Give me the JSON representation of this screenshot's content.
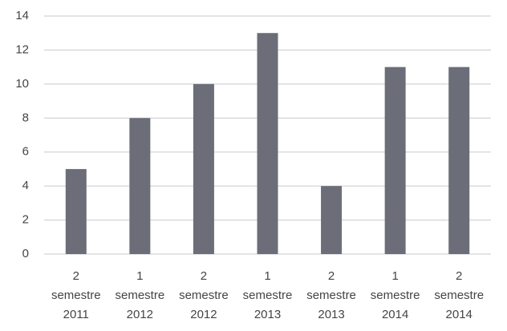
{
  "chart_data": {
    "type": "bar",
    "categories": [
      "2 semestre 2011",
      "1 semestre 2012",
      "2 semestre 2012",
      "1 semestre 2013",
      "2 semestre 2013",
      "1 semestre 2014",
      "2 semestre 2014"
    ],
    "values": [
      5,
      8,
      10,
      13,
      4,
      11,
      11
    ],
    "color": "#6b6e78",
    "ylim": [
      0,
      14
    ],
    "yticks": [
      0,
      2,
      4,
      6,
      8,
      10,
      12,
      14
    ],
    "grid": true
  }
}
